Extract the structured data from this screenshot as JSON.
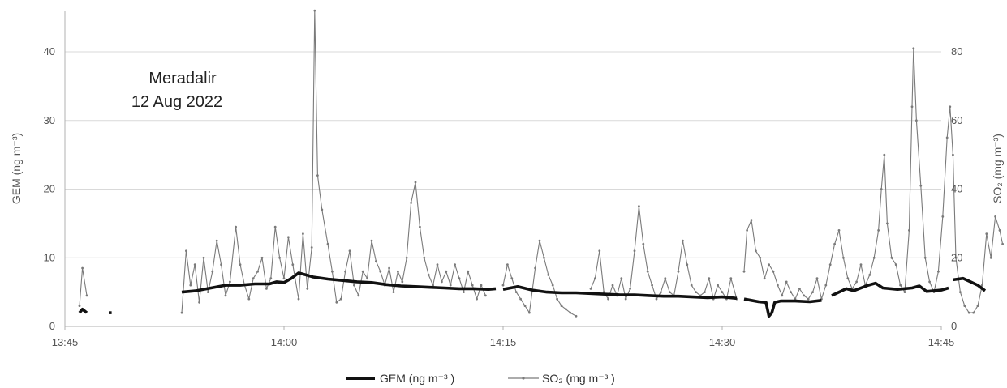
{
  "chart_data": {
    "type": "line",
    "annotation": [
      "Meradalir",
      "12 Aug 2022"
    ],
    "y_left": {
      "label": "GEM (ng m⁻³)",
      "range": [
        0,
        45
      ],
      "ticks": [
        "0",
        "10",
        "20",
        "30",
        "40"
      ]
    },
    "y_right": {
      "label": "SO₂ (mg m⁻³)",
      "range": [
        0,
        90
      ],
      "ticks": [
        "0",
        "20",
        "40",
        "60",
        "80"
      ]
    },
    "x_axis": {
      "range_minutes": [
        0,
        60
      ],
      "tick_labels": [
        "13:45",
        "14:00",
        "14:15",
        "14:30",
        "14:45"
      ]
    },
    "grid": "horizontal",
    "legend": {
      "position": "bottom",
      "gem_label": "GEM (ng m⁻³ )",
      "so2_label": "SO₂ (mg m⁻³ )"
    },
    "colors": {
      "gem": "#111111",
      "so2": "#7a7a7a",
      "grid": "#d9d9d9",
      "axis": "#b0b0b0"
    },
    "series": [
      {
        "name": "GEM (ng m⁻³ )",
        "axis": "left",
        "segments": [
          [
            [
              1.0,
              2.0
            ],
            [
              1.2,
              2.5
            ],
            [
              1.5,
              2.0
            ]
          ],
          [
            [
              3.0,
              2.0
            ],
            [
              3.2,
              2.0
            ]
          ],
          [
            [
              8.0,
              5.0
            ],
            [
              9.0,
              5.2
            ],
            [
              10.0,
              5.6
            ],
            [
              11.0,
              6.0
            ],
            [
              12.0,
              6.0
            ],
            [
              13.0,
              6.2
            ],
            [
              14.0,
              6.2
            ],
            [
              14.5,
              6.5
            ],
            [
              15.0,
              6.4
            ],
            [
              15.5,
              7.0
            ],
            [
              16.0,
              7.8
            ],
            [
              16.5,
              7.5
            ],
            [
              17.0,
              7.2
            ],
            [
              18.0,
              6.9
            ],
            [
              19.0,
              6.7
            ],
            [
              20.0,
              6.5
            ],
            [
              21.0,
              6.4
            ],
            [
              22.0,
              6.1
            ],
            [
              23.0,
              5.9
            ],
            [
              24.0,
              5.8
            ],
            [
              25.0,
              5.7
            ],
            [
              26.0,
              5.6
            ],
            [
              27.0,
              5.5
            ],
            [
              28.0,
              5.5
            ],
            [
              29.0,
              5.4
            ],
            [
              29.5,
              5.5
            ]
          ],
          [
            [
              30.0,
              5.4
            ],
            [
              31.0,
              5.8
            ],
            [
              32.0,
              5.3
            ],
            [
              33.0,
              5.0
            ],
            [
              34.0,
              4.9
            ],
            [
              35.0,
              4.9
            ],
            [
              36.0,
              4.8
            ],
            [
              37.0,
              4.7
            ],
            [
              38.0,
              4.6
            ],
            [
              39.0,
              4.6
            ],
            [
              40.0,
              4.5
            ],
            [
              41.0,
              4.4
            ],
            [
              42.0,
              4.4
            ],
            [
              43.0,
              4.3
            ],
            [
              44.0,
              4.2
            ],
            [
              45.0,
              4.3
            ],
            [
              46.0,
              4.1
            ]
          ],
          [
            [
              46.5,
              4.0
            ],
            [
              47.0,
              3.8
            ],
            [
              47.5,
              3.6
            ],
            [
              48.0,
              3.5
            ],
            [
              48.2,
              1.5
            ],
            [
              48.4,
              2.0
            ],
            [
              48.6,
              3.5
            ],
            [
              49.0,
              3.7
            ],
            [
              50.0,
              3.7
            ],
            [
              51.0,
              3.6
            ],
            [
              51.8,
              3.8
            ]
          ],
          [
            [
              52.5,
              4.5
            ],
            [
              53.0,
              5.0
            ],
            [
              53.5,
              5.5
            ],
            [
              54.0,
              5.2
            ],
            [
              55.0,
              6.0
            ],
            [
              55.5,
              6.3
            ],
            [
              56.0,
              5.6
            ],
            [
              57.0,
              5.4
            ],
            [
              58.0,
              5.6
            ],
            [
              58.5,
              5.9
            ],
            [
              59.0,
              5.1
            ],
            [
              59.5,
              5.2
            ],
            [
              60.0,
              5.3
            ],
            [
              60.5,
              5.6
            ]
          ],
          [
            [
              60.8,
              6.8
            ],
            [
              61.5,
              7.0
            ],
            [
              62.0,
              6.5
            ],
            [
              62.5,
              6.0
            ],
            [
              63.0,
              5.2
            ]
          ]
        ]
      },
      {
        "name": "SO₂ (mg m⁻³ )",
        "axis": "right",
        "segments": [
          [
            [
              1.0,
              6
            ],
            [
              1.2,
              17
            ],
            [
              1.5,
              9
            ]
          ],
          [
            [
              8.0,
              4
            ],
            [
              8.3,
              22
            ],
            [
              8.6,
              12
            ],
            [
              8.9,
              18
            ],
            [
              9.2,
              7
            ],
            [
              9.5,
              20
            ],
            [
              9.8,
              10
            ],
            [
              10.1,
              16
            ],
            [
              10.4,
              25
            ],
            [
              10.7,
              18
            ],
            [
              11.0,
              9
            ],
            [
              11.3,
              13
            ],
            [
              11.7,
              29
            ],
            [
              12.0,
              18
            ],
            [
              12.3,
              12
            ],
            [
              12.6,
              8
            ],
            [
              12.9,
              14
            ],
            [
              13.2,
              16
            ],
            [
              13.5,
              20
            ],
            [
              13.8,
              11
            ],
            [
              14.1,
              14
            ],
            [
              14.4,
              29
            ],
            [
              14.7,
              20
            ],
            [
              15.0,
              14
            ],
            [
              15.3,
              26
            ],
            [
              15.6,
              18
            ],
            [
              16.0,
              8
            ],
            [
              16.3,
              27
            ],
            [
              16.6,
              11
            ],
            [
              16.9,
              23
            ],
            [
              17.1,
              92
            ],
            [
              17.3,
              44
            ],
            [
              17.6,
              34
            ],
            [
              18.0,
              24
            ],
            [
              18.3,
              16
            ],
            [
              18.6,
              7
            ],
            [
              18.9,
              8
            ],
            [
              19.2,
              16
            ],
            [
              19.5,
              22
            ],
            [
              19.8,
              12
            ],
            [
              20.1,
              9
            ],
            [
              20.4,
              16
            ],
            [
              20.7,
              14
            ],
            [
              21.0,
              25
            ],
            [
              21.3,
              19
            ],
            [
              21.6,
              16
            ],
            [
              21.9,
              12
            ],
            [
              22.2,
              17
            ],
            [
              22.5,
              10
            ],
            [
              22.8,
              16
            ],
            [
              23.1,
              13
            ],
            [
              23.4,
              20
            ],
            [
              23.7,
              36
            ],
            [
              24.0,
              42
            ],
            [
              24.3,
              29
            ],
            [
              24.6,
              20
            ],
            [
              24.9,
              15
            ],
            [
              25.2,
              12
            ],
            [
              25.5,
              18
            ],
            [
              25.8,
              13
            ],
            [
              26.1,
              16
            ],
            [
              26.4,
              12
            ],
            [
              26.7,
              18
            ],
            [
              27.0,
              14
            ],
            [
              27.3,
              10
            ],
            [
              27.6,
              16
            ],
            [
              27.9,
              12
            ],
            [
              28.2,
              8
            ],
            [
              28.5,
              12
            ],
            [
              28.8,
              9
            ]
          ],
          [
            [
              30.0,
              12
            ],
            [
              30.3,
              18
            ],
            [
              30.6,
              14
            ],
            [
              30.9,
              10
            ],
            [
              31.2,
              8
            ],
            [
              31.5,
              6
            ],
            [
              31.8,
              4
            ],
            [
              32.2,
              17
            ],
            [
              32.5,
              25
            ],
            [
              32.8,
              20
            ],
            [
              33.1,
              15
            ],
            [
              33.4,
              12
            ],
            [
              33.7,
              8
            ],
            [
              34.0,
              6
            ],
            [
              34.3,
              5
            ],
            [
              34.6,
              4
            ],
            [
              35.0,
              3
            ]
          ],
          [
            [
              36.0,
              11
            ],
            [
              36.3,
              14
            ],
            [
              36.6,
              22
            ],
            [
              36.9,
              10
            ],
            [
              37.2,
              8
            ],
            [
              37.5,
              12
            ],
            [
              37.8,
              9
            ],
            [
              38.1,
              14
            ],
            [
              38.4,
              8
            ],
            [
              38.7,
              11
            ],
            [
              39.0,
              22
            ],
            [
              39.3,
              35
            ],
            [
              39.6,
              24
            ],
            [
              39.9,
              16
            ],
            [
              40.2,
              12
            ],
            [
              40.5,
              8
            ],
            [
              40.8,
              10
            ],
            [
              41.1,
              14
            ],
            [
              41.4,
              10
            ],
            [
              41.7,
              9
            ],
            [
              42.0,
              16
            ],
            [
              42.3,
              25
            ],
            [
              42.6,
              18
            ],
            [
              42.9,
              12
            ],
            [
              43.2,
              10
            ],
            [
              43.5,
              9
            ],
            [
              43.8,
              10
            ],
            [
              44.1,
              14
            ],
            [
              44.4,
              8
            ],
            [
              44.7,
              12
            ],
            [
              45.0,
              10
            ],
            [
              45.3,
              8
            ],
            [
              45.6,
              14
            ],
            [
              46.0,
              8
            ]
          ],
          [
            [
              46.5,
              16
            ],
            [
              46.7,
              28
            ],
            [
              47.0,
              31
            ],
            [
              47.3,
              22
            ],
            [
              47.6,
              20
            ],
            [
              47.9,
              14
            ],
            [
              48.2,
              18
            ],
            [
              48.5,
              16
            ],
            [
              48.8,
              12
            ],
            [
              49.1,
              9
            ],
            [
              49.4,
              13
            ],
            [
              49.7,
              10
            ],
            [
              50.0,
              8
            ],
            [
              50.3,
              11
            ],
            [
              50.6,
              9
            ],
            [
              50.9,
              8
            ],
            [
              51.2,
              10
            ],
            [
              51.5,
              14
            ],
            [
              51.8,
              8
            ],
            [
              52.1,
              12
            ],
            [
              52.4,
              18
            ],
            [
              52.7,
              24
            ],
            [
              53.0,
              28
            ],
            [
              53.3,
              20
            ],
            [
              53.6,
              14
            ],
            [
              53.9,
              11
            ],
            [
              54.2,
              13
            ],
            [
              54.5,
              18
            ],
            [
              54.8,
              12
            ],
            [
              55.1,
              15
            ],
            [
              55.4,
              20
            ],
            [
              55.7,
              28
            ],
            [
              55.9,
              40
            ],
            [
              56.1,
              50
            ],
            [
              56.3,
              30
            ],
            [
              56.6,
              20
            ],
            [
              56.9,
              18
            ],
            [
              57.2,
              12
            ],
            [
              57.5,
              10
            ],
            [
              57.8,
              28
            ],
            [
              58.0,
              64
            ],
            [
              58.1,
              81
            ],
            [
              58.3,
              60
            ],
            [
              58.6,
              41
            ],
            [
              58.9,
              20
            ],
            [
              59.2,
              13
            ],
            [
              59.5,
              10
            ],
            [
              59.8,
              16
            ],
            [
              60.1,
              32
            ],
            [
              60.4,
              55
            ],
            [
              60.6,
              64
            ],
            [
              60.8,
              50
            ],
            [
              61.0,
              20
            ],
            [
              61.3,
              10
            ],
            [
              61.6,
              6
            ],
            [
              61.9,
              4
            ],
            [
              62.2,
              4
            ],
            [
              62.5,
              6
            ],
            [
              62.8,
              12
            ],
            [
              63.1,
              27
            ],
            [
              63.4,
              20
            ],
            [
              63.7,
              32
            ],
            [
              64.0,
              28
            ],
            [
              64.2,
              24
            ]
          ]
        ]
      }
    ]
  }
}
